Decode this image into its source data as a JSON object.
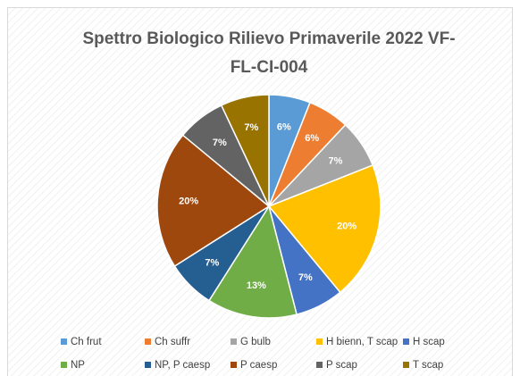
{
  "chart_data": {
    "type": "pie",
    "title": "Spettro Biologico Rilievo Primaverile 2022 VF-FL-CI-004",
    "categories": [
      "Ch frut",
      "Ch suffr",
      "G bulb",
      "H bienn, T scap",
      "H scap",
      "NP",
      "NP, P caesp",
      "P caesp",
      "P scap",
      "T scap"
    ],
    "values": [
      6,
      6,
      7,
      20,
      7,
      13,
      7,
      20,
      7,
      7
    ],
    "value_labels": [
      "6%",
      "6%",
      "7%",
      "20%",
      "7%",
      "13%",
      "7%",
      "20%",
      "7%",
      "7%"
    ],
    "colors": [
      "#5b9bd5",
      "#ed7d31",
      "#a5a5a5",
      "#ffc000",
      "#4472c4",
      "#70ad47",
      "#255e91",
      "#9e480e",
      "#636363",
      "#997300"
    ],
    "legend": "bottom"
  }
}
